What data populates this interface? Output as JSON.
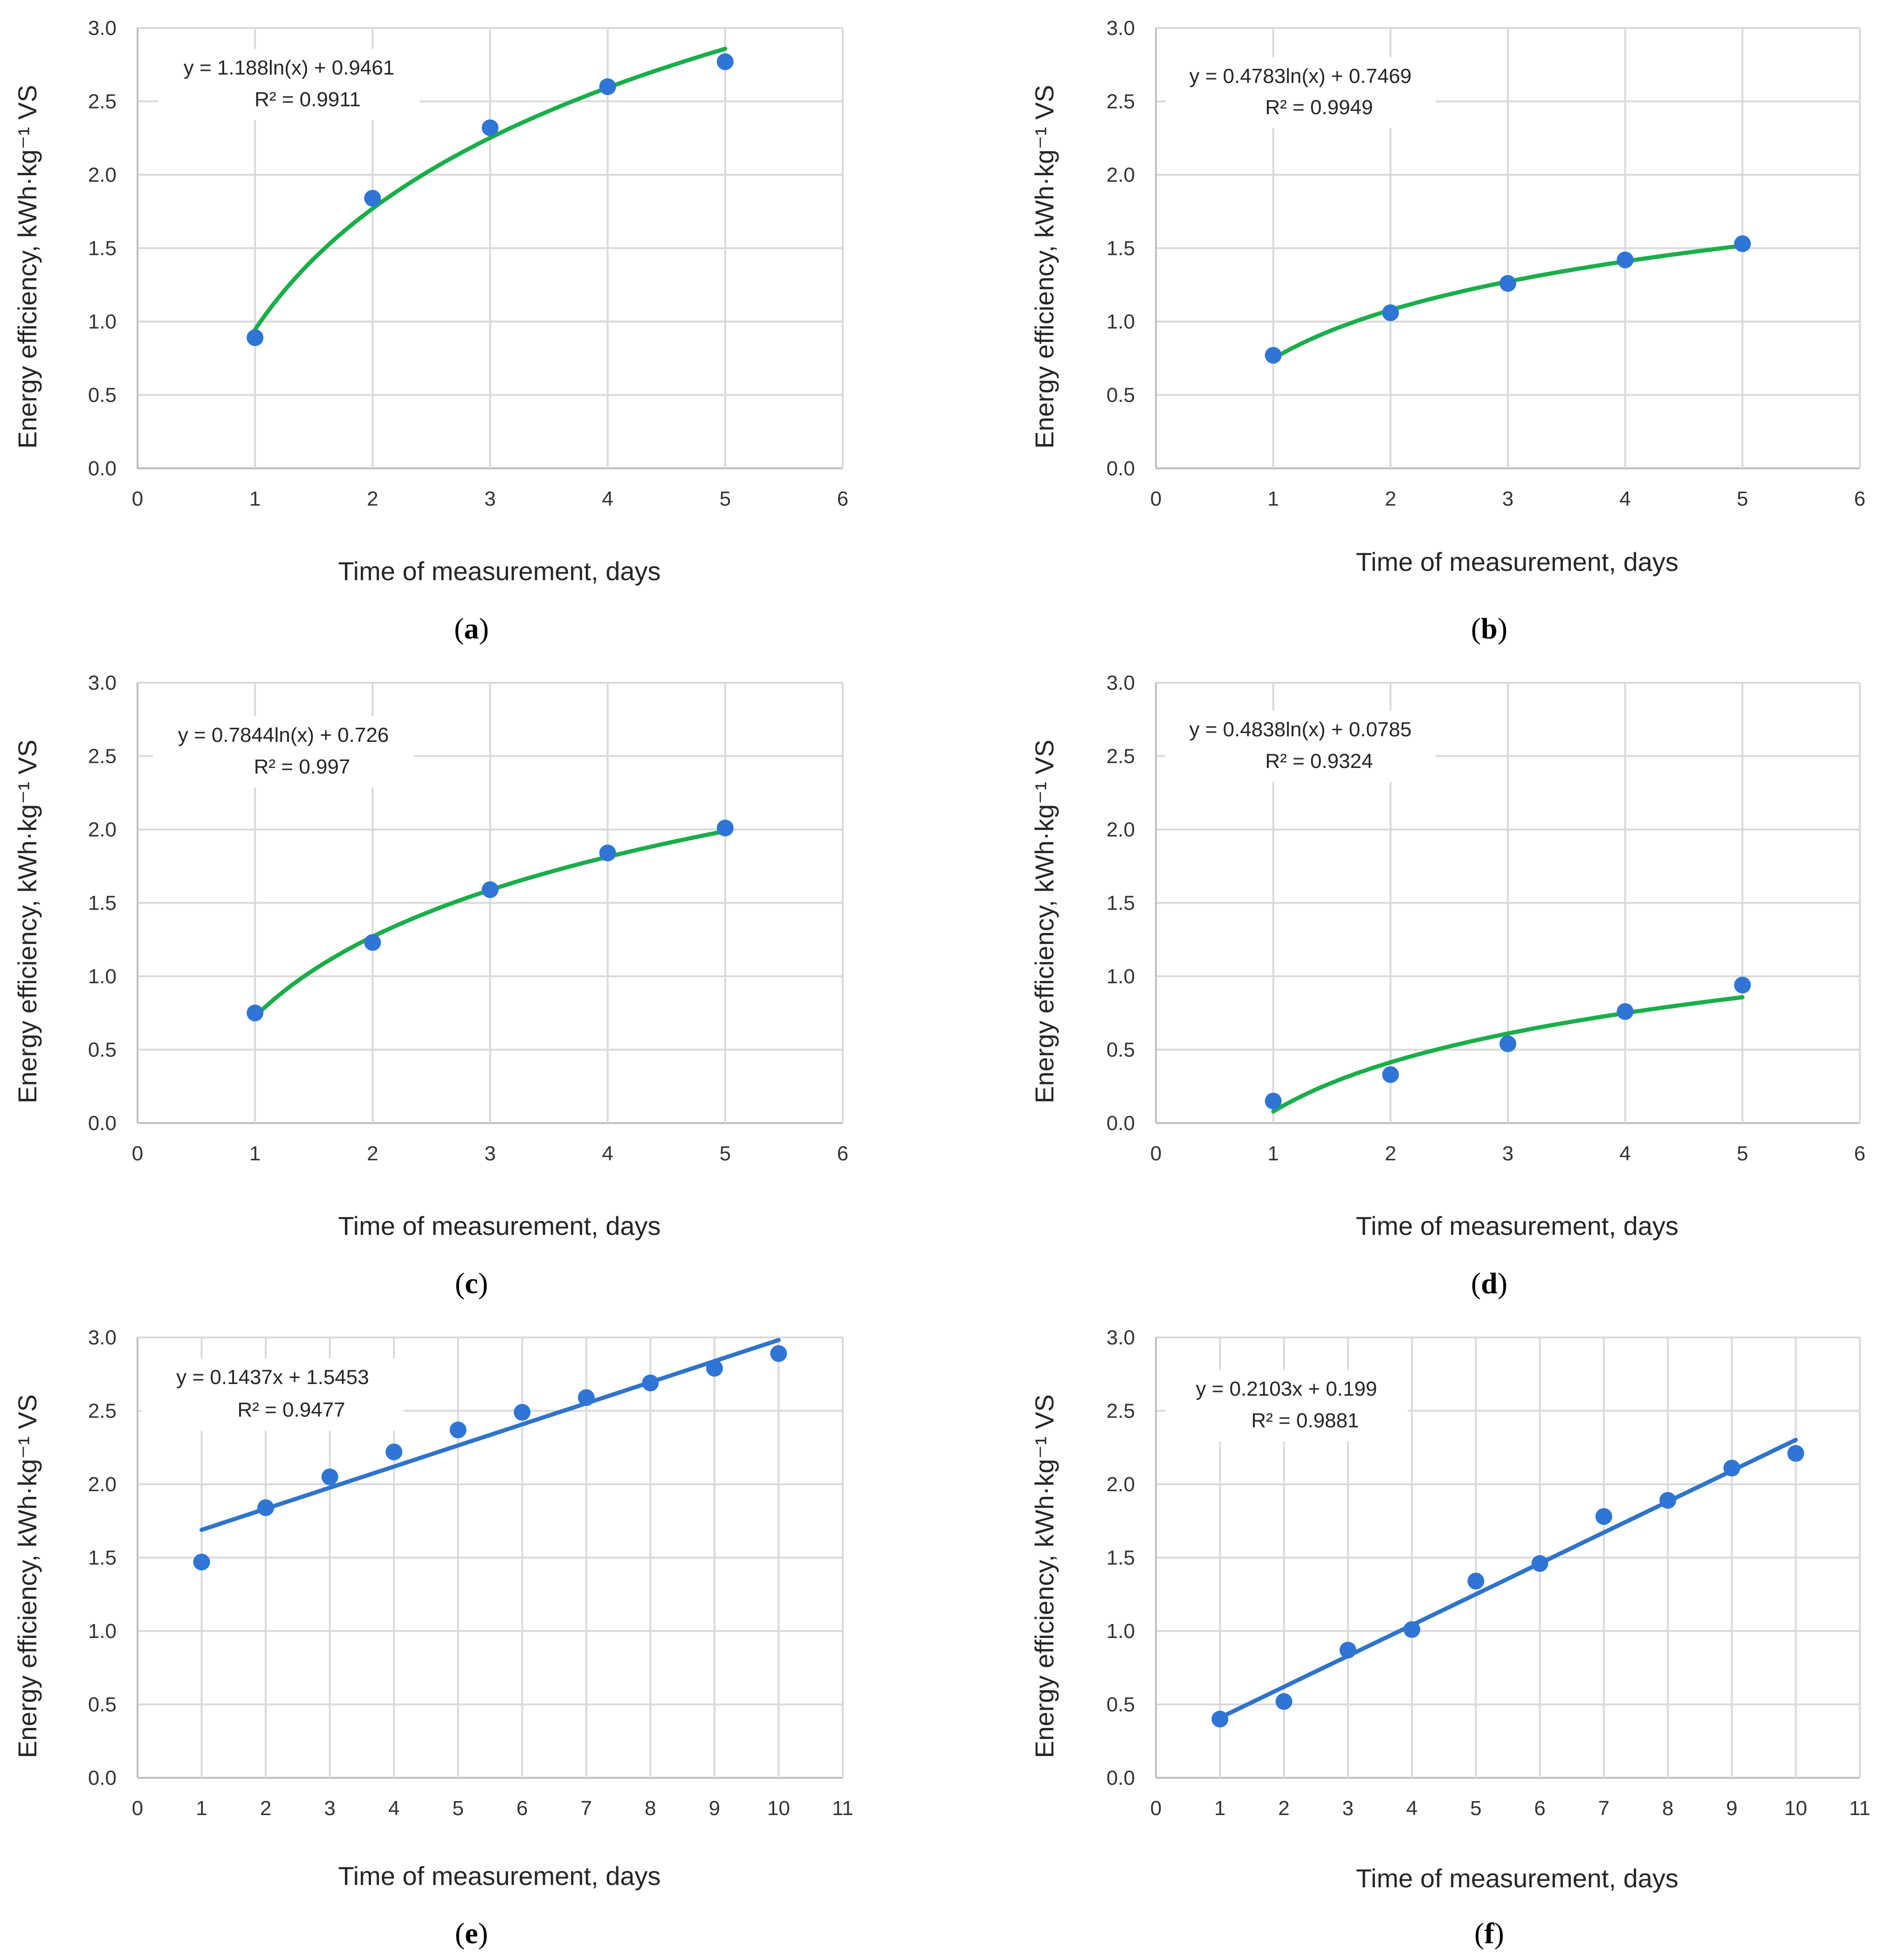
{
  "colors": {
    "point": "#2e75d6",
    "log_trend": "#1aae4a",
    "linear_trend": "#2f74c9",
    "grid": "#d9d9d9",
    "text": "#262626"
  },
  "chart_data": [
    {
      "panel": "a",
      "type": "scatter",
      "xlabel": "Time of measurement, days",
      "ylabel": "Energy efficiency, kWh·kg⁻¹ VS",
      "xlim": [
        0,
        6
      ],
      "xticks": [
        0,
        1,
        2,
        3,
        4,
        5,
        6
      ],
      "ylim": [
        0,
        3
      ],
      "yticks": [
        "0.0",
        "0.5",
        "1.0",
        "1.5",
        "2.0",
        "2.5",
        "3.0"
      ],
      "x": [
        1,
        2,
        3,
        4,
        5
      ],
      "y": [
        0.89,
        1.84,
        2.32,
        2.6,
        2.77
      ],
      "trendline": {
        "type": "log",
        "a": 1.188,
        "b": 0.9461
      },
      "equation": "y = 1.188ln(x) + 0.9461",
      "r2": "R² = 0.9911",
      "label_open": "(",
      "label_letter": "a",
      "label_close": ")"
    },
    {
      "panel": "b",
      "type": "scatter",
      "xlabel": "Time of measurement, days",
      "ylabel": "Energy efficiency, kWh·kg⁻¹ VS",
      "xlim": [
        0,
        6
      ],
      "xticks": [
        0,
        1,
        2,
        3,
        4,
        5,
        6
      ],
      "ylim": [
        0,
        3
      ],
      "yticks": [
        "0.0",
        "0.5",
        "1.0",
        "1.5",
        "2.0",
        "2.5",
        "3.0"
      ],
      "x": [
        1,
        2,
        3,
        4,
        5
      ],
      "y": [
        0.77,
        1.06,
        1.26,
        1.42,
        1.53
      ],
      "trendline": {
        "type": "log",
        "a": 0.4783,
        "b": 0.7469
      },
      "equation": "y = 0.4783ln(x) + 0.7469",
      "r2": "R² = 0.9949",
      "label_open": "(",
      "label_letter": "b",
      "label_close": ")"
    },
    {
      "panel": "c",
      "type": "scatter",
      "xlabel": "Time of measurement, days",
      "ylabel": "Energy efficiency, kWh·kg⁻¹ VS",
      "xlim": [
        0,
        6
      ],
      "xticks": [
        0,
        1,
        2,
        3,
        4,
        5,
        6
      ],
      "ylim": [
        0,
        3
      ],
      "yticks": [
        "0.0",
        "0.5",
        "1.0",
        "1.5",
        "2.0",
        "2.5",
        "3.0"
      ],
      "x": [
        1,
        2,
        3,
        4,
        5
      ],
      "y": [
        0.75,
        1.23,
        1.59,
        1.84,
        2.01
      ],
      "trendline": {
        "type": "log",
        "a": 0.7844,
        "b": 0.726
      },
      "equation": "y = 0.7844ln(x) + 0.726",
      "r2": "R² = 0.997",
      "label_open": "(",
      "label_letter": "c",
      "label_close": ")"
    },
    {
      "panel": "d",
      "type": "scatter",
      "xlabel": "Time of measurement, days",
      "ylabel": "Energy efficiency, kWh·kg⁻¹ VS",
      "xlim": [
        0,
        6
      ],
      "xticks": [
        0,
        1,
        2,
        3,
        4,
        5,
        6
      ],
      "ylim": [
        0,
        3
      ],
      "yticks": [
        "0.0",
        "0.5",
        "1.0",
        "1.5",
        "2.0",
        "2.5",
        "3.0"
      ],
      "x": [
        1,
        2,
        3,
        4,
        5
      ],
      "y": [
        0.15,
        0.33,
        0.54,
        0.76,
        0.94
      ],
      "trendline": {
        "type": "log",
        "a": 0.4838,
        "b": 0.0785
      },
      "equation": "y = 0.4838ln(x) + 0.0785",
      "r2": "R² = 0.9324",
      "label_open": "(",
      "label_letter": "d",
      "label_close": ")"
    },
    {
      "panel": "e",
      "type": "scatter",
      "xlabel": "Time of measurement, days",
      "ylabel": "Energy efficiency, kWh·kg⁻¹ VS",
      "xlim": [
        0,
        11
      ],
      "xticks": [
        0,
        1,
        2,
        3,
        4,
        5,
        6,
        7,
        8,
        9,
        10,
        11
      ],
      "ylim": [
        0,
        3
      ],
      "yticks": [
        "0.0",
        "0.5",
        "1.0",
        "1.5",
        "2.0",
        "2.5",
        "3.0"
      ],
      "x": [
        1,
        2,
        3,
        4,
        5,
        6,
        7,
        8,
        9,
        10
      ],
      "y": [
        1.47,
        1.84,
        2.05,
        2.22,
        2.37,
        2.49,
        2.59,
        2.69,
        2.79,
        2.89
      ],
      "trendline": {
        "type": "linear",
        "a": 0.1437,
        "b": 1.5453
      },
      "equation": "y = 0.1437x + 1.5453",
      "r2": "R² = 0.9477",
      "label_open": "(",
      "label_letter": "e",
      "label_close": ")"
    },
    {
      "panel": "f",
      "type": "scatter",
      "xlabel": "Time of measurement, days",
      "ylabel": "Energy efficiency, kWh·kg⁻¹ VS",
      "xlim": [
        0,
        11
      ],
      "xticks": [
        0,
        1,
        2,
        3,
        4,
        5,
        6,
        7,
        8,
        9,
        10,
        11
      ],
      "ylim": [
        0,
        3
      ],
      "yticks": [
        "0.0",
        "0.5",
        "1.0",
        "1.5",
        "2.0",
        "2.5",
        "3.0"
      ],
      "x": [
        1,
        2,
        3,
        4,
        5,
        6,
        7,
        8,
        9,
        10
      ],
      "y": [
        0.4,
        0.52,
        0.87,
        1.01,
        1.34,
        1.46,
        1.78,
        1.89,
        2.11,
        2.21
      ],
      "trendline": {
        "type": "linear",
        "a": 0.2103,
        "b": 0.199
      },
      "equation": "y = 0.2103x + 0.199",
      "r2": "R² = 0.9881",
      "label_open": "(",
      "label_letter": "f",
      "label_close": ")"
    }
  ]
}
